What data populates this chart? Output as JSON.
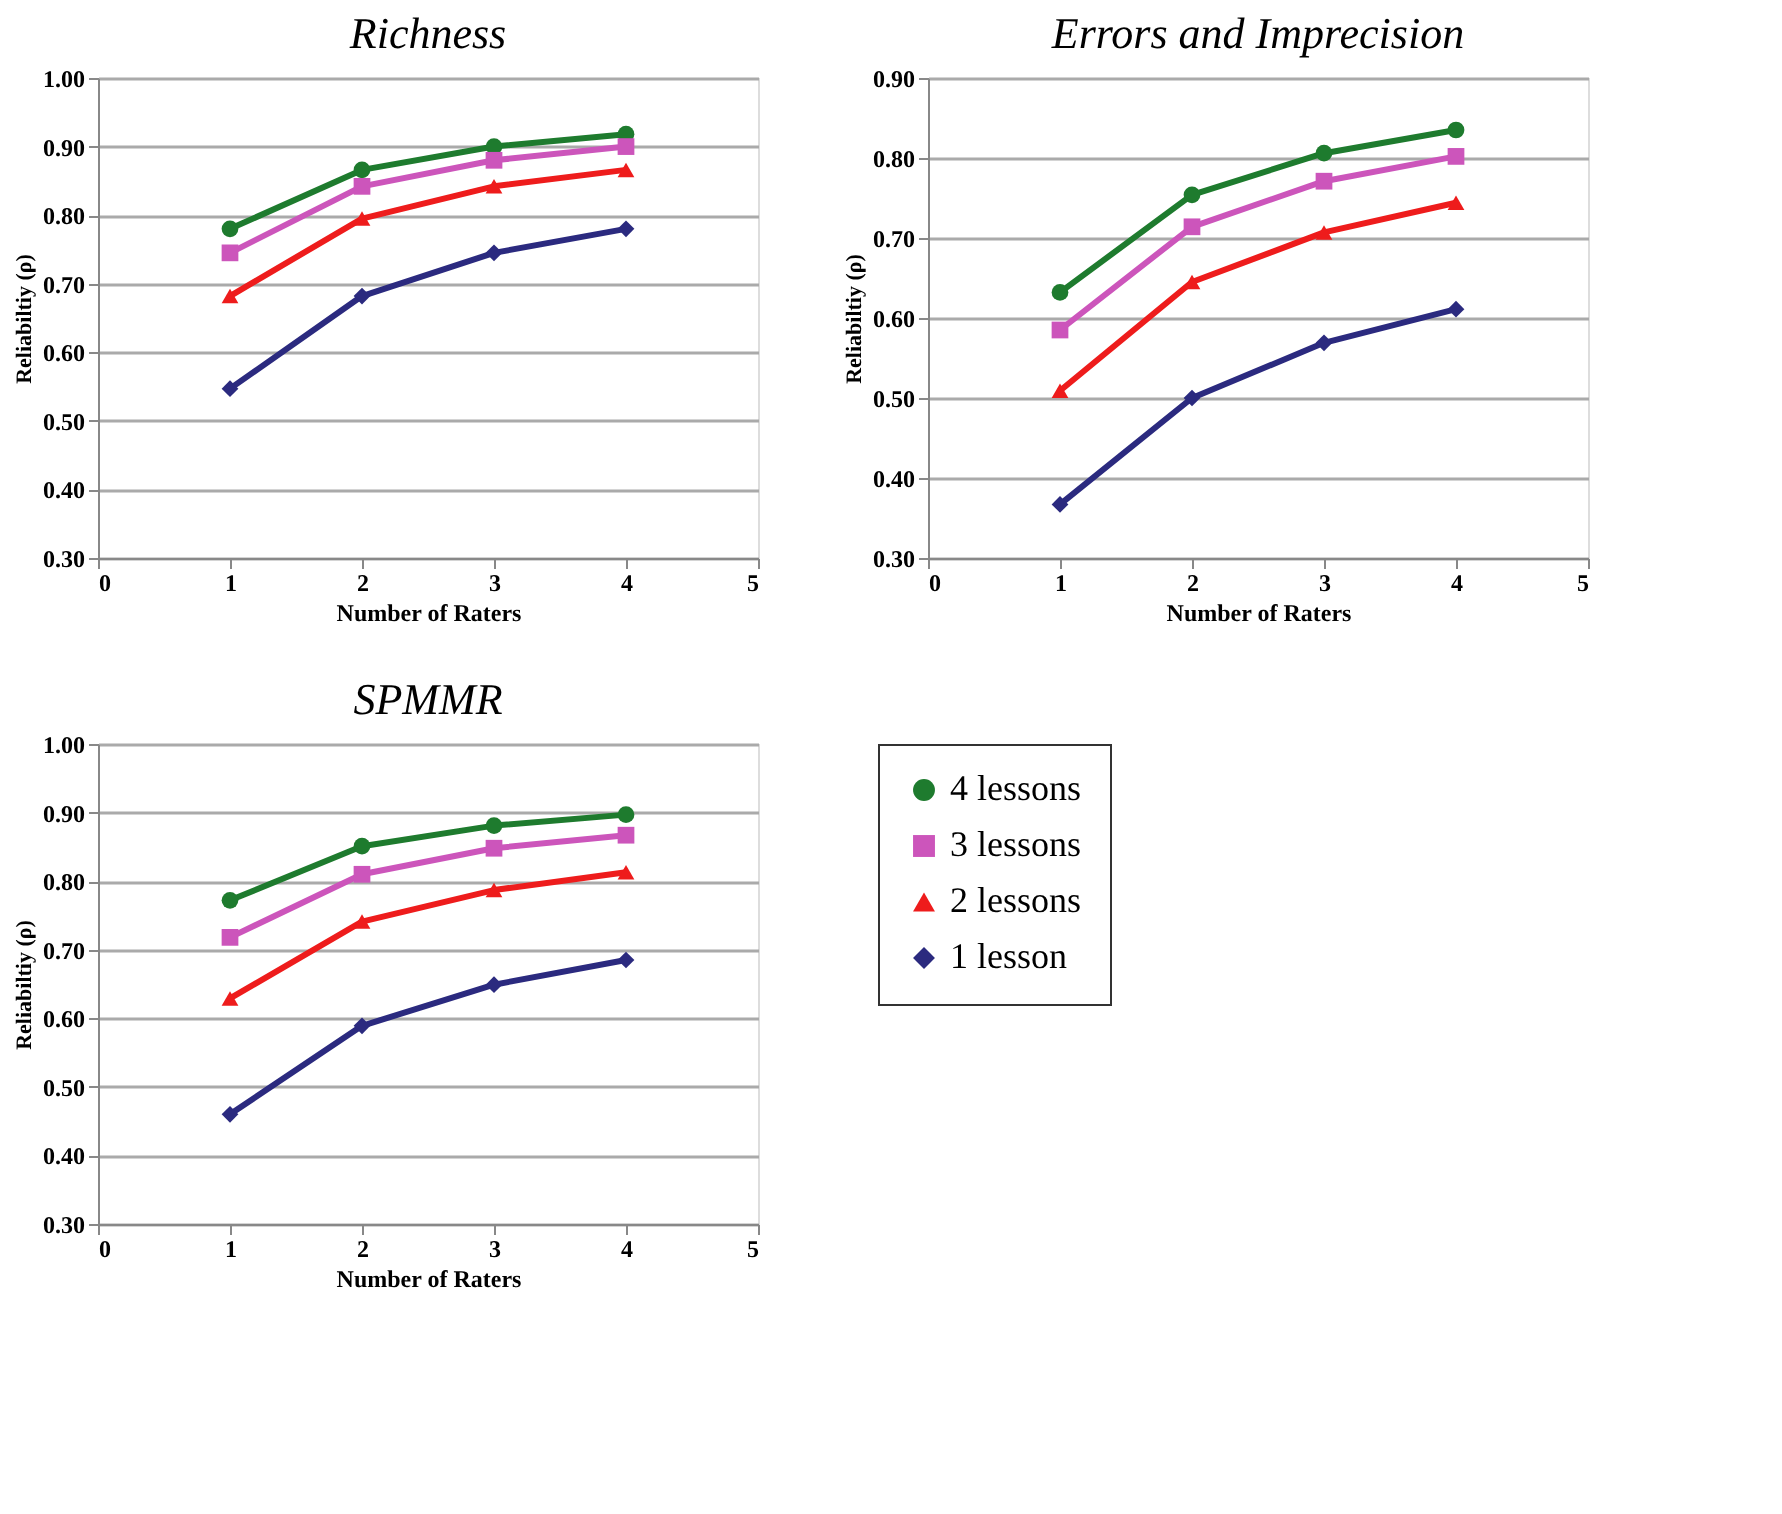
{
  "chart_data": [
    {
      "type": "line",
      "title": "Richness",
      "xlabel": "Number of Raters",
      "ylabel": "Reliabiltiy (ρ)",
      "x": [
        1,
        2,
        3,
        4
      ],
      "xlim": [
        0,
        5
      ],
      "xticks": [
        0,
        1,
        2,
        3,
        4,
        5
      ],
      "ylim": [
        0.3,
        1.0
      ],
      "yticks": [
        {
          "value": 0.3,
          "label": "0.30"
        },
        {
          "value": 0.4,
          "label": "0.40"
        },
        {
          "value": 0.5,
          "label": "0.50"
        },
        {
          "value": 0.6,
          "label": "0.60"
        },
        {
          "value": 0.7,
          "label": "0.70"
        },
        {
          "value": 0.8,
          "label": "0.80"
        },
        {
          "value": 0.9,
          "label": "0.90"
        },
        {
          "value": 1.0,
          "label": "1.00"
        }
      ],
      "grid": "y",
      "series": [
        {
          "color": "#1e7b2e",
          "marker": "circle",
          "values": [
            0.78,
            0.866,
            0.9,
            0.918
          ]
        },
        {
          "color": "#cc55bb",
          "marker": "square",
          "values": [
            0.745,
            0.842,
            0.88,
            0.9
          ]
        },
        {
          "color": "#ee1c1c",
          "marker": "triangle",
          "values": [
            0.682,
            0.795,
            0.842,
            0.866
          ]
        },
        {
          "color": "#2b2a7f",
          "marker": "diamond",
          "values": [
            0.547,
            0.682,
            0.745,
            0.78
          ]
        }
      ]
    },
    {
      "type": "line",
      "title": "Errors and Imprecision",
      "xlabel": "Number of Raters",
      "ylabel": "Reliabiltiy (ρ)",
      "x": [
        1,
        2,
        3,
        4
      ],
      "xlim": [
        0,
        5
      ],
      "xticks": [
        0,
        1,
        2,
        3,
        4,
        5
      ],
      "ylim": [
        0.3,
        0.9
      ],
      "yticks": [
        {
          "value": 0.3,
          "label": "0.30"
        },
        {
          "value": 0.4,
          "label": "0.40"
        },
        {
          "value": 0.5,
          "label": "0.50"
        },
        {
          "value": 0.6,
          "label": "0.60"
        },
        {
          "value": 0.7,
          "label": "0.70"
        },
        {
          "value": 0.8,
          "label": "0.80"
        },
        {
          "value": 0.9,
          "label": "0.90"
        }
      ],
      "grid": "y",
      "series": [
        {
          "color": "#1e7b2e",
          "marker": "circle",
          "values": [
            0.632,
            0.754,
            0.806,
            0.835
          ]
        },
        {
          "color": "#cc55bb",
          "marker": "square",
          "values": [
            0.585,
            0.714,
            0.771,
            0.802
          ]
        },
        {
          "color": "#ee1c1c",
          "marker": "triangle",
          "values": [
            0.509,
            0.645,
            0.707,
            0.744
          ]
        },
        {
          "color": "#2b2a7f",
          "marker": "diamond",
          "values": [
            0.367,
            0.5,
            0.569,
            0.611
          ]
        }
      ]
    },
    {
      "type": "line",
      "title": "SPMMR",
      "xlabel": "Number of Raters",
      "ylabel": "Reliabiltiy (ρ)",
      "x": [
        1,
        2,
        3,
        4
      ],
      "xlim": [
        0,
        5
      ],
      "xticks": [
        0,
        1,
        2,
        3,
        4,
        5
      ],
      "ylim": [
        0.3,
        1.0
      ],
      "yticks": [
        {
          "value": 0.3,
          "label": "0.30"
        },
        {
          "value": 0.4,
          "label": "0.40"
        },
        {
          "value": 0.5,
          "label": "0.50"
        },
        {
          "value": 0.6,
          "label": "0.60"
        },
        {
          "value": 0.7,
          "label": "0.70"
        },
        {
          "value": 0.8,
          "label": "0.80"
        },
        {
          "value": 0.9,
          "label": "0.90"
        },
        {
          "value": 1.0,
          "label": "1.00"
        }
      ],
      "grid": "y",
      "legend": "right",
      "series": [
        {
          "name": "4 lessons",
          "color": "#1e7b2e",
          "marker": "circle",
          "values": [
            0.772,
            0.851,
            0.881,
            0.897
          ]
        },
        {
          "name": "3 lessons",
          "color": "#cc55bb",
          "marker": "square",
          "values": [
            0.718,
            0.81,
            0.848,
            0.867
          ]
        },
        {
          "name": "2 lessons",
          "color": "#ee1c1c",
          "marker": "triangle",
          "values": [
            0.629,
            0.741,
            0.787,
            0.813
          ]
        },
        {
          "name": "1 lesson",
          "color": "#2b2a7f",
          "marker": "diamond",
          "values": [
            0.46,
            0.589,
            0.649,
            0.685
          ]
        }
      ]
    }
  ]
}
